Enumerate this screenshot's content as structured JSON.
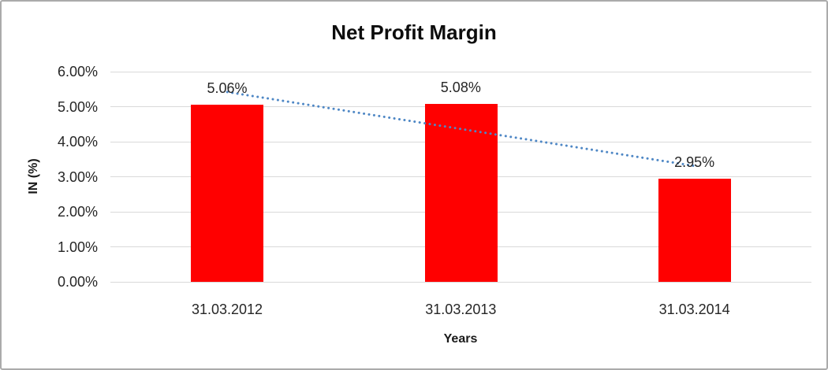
{
  "chart_data": {
    "type": "bar",
    "title": "Net Profit Margin",
    "xlabel": "Years",
    "ylabel": "IN (%)",
    "categories": [
      "31.03.2012",
      "31.03.2013",
      "31.03.2014"
    ],
    "values": [
      5.06,
      5.08,
      2.95
    ],
    "data_labels": [
      "5.06%",
      "5.08%",
      "2.95%"
    ],
    "y_ticks": [
      "0.00%",
      "1.00%",
      "2.00%",
      "3.00%",
      "4.00%",
      "5.00%",
      "6.00%"
    ],
    "ylim": [
      0,
      6
    ],
    "grid": true,
    "legend": "none",
    "bar_color": "#FF0000",
    "gridline_color": "#D9D9D9",
    "frame_color": "#ABABAB",
    "text_color": "#262626",
    "trendline": {
      "type": "linear",
      "style": "dotted",
      "color": "#4E87C5"
    }
  }
}
